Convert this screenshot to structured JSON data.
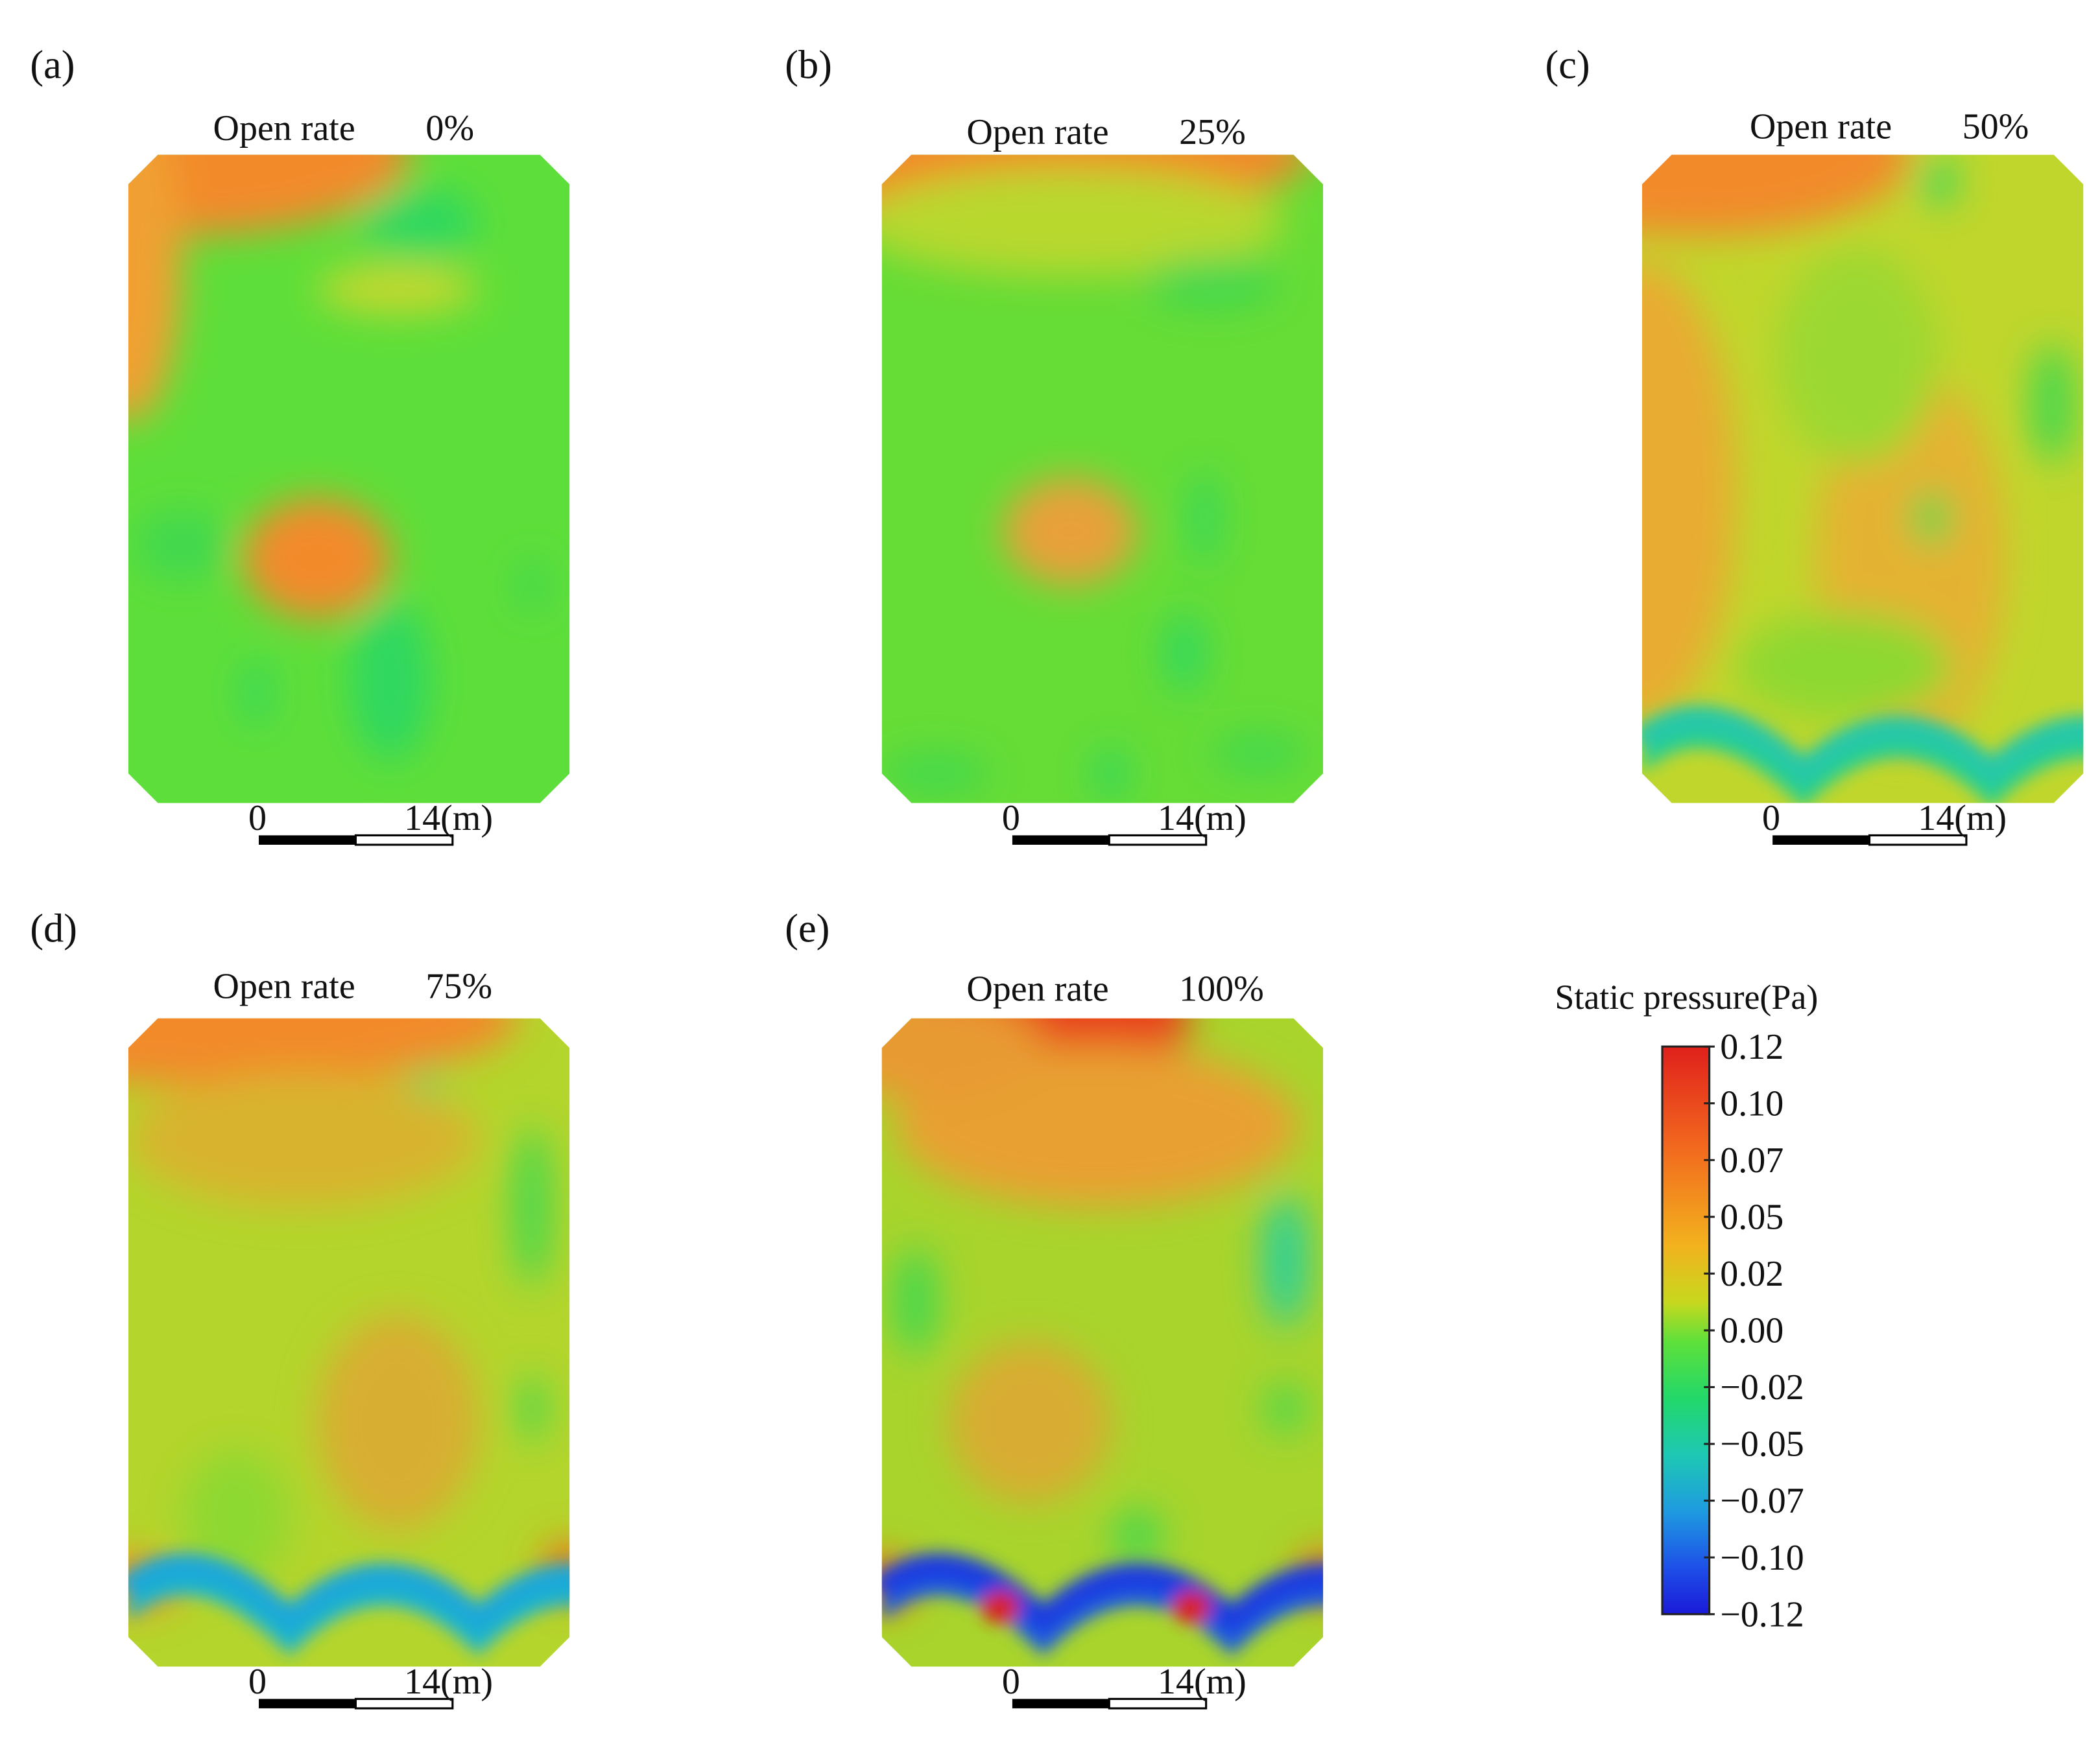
{
  "panels": [
    {
      "letter": "(a)",
      "title_label": "Open rate",
      "title_value": "0%",
      "scale_start": "0",
      "scale_end": "14(m)"
    },
    {
      "letter": "(b)",
      "title_label": "Open rate",
      "title_value": "25%",
      "scale_start": "0",
      "scale_end": "14(m)"
    },
    {
      "letter": "(c)",
      "title_label": "Open rate",
      "title_value": "50%",
      "scale_start": "0",
      "scale_end": "14(m)"
    },
    {
      "letter": "(d)",
      "title_label": "Open rate",
      "title_value": "75%",
      "scale_start": "0",
      "scale_end": "14(m)"
    },
    {
      "letter": "(e)",
      "title_label": "Open rate",
      "title_value": "100%",
      "scale_start": "0",
      "scale_end": "14(m)"
    }
  ],
  "colorbar": {
    "title": "Static pressure(Pa)",
    "ticks": [
      "0.12",
      "0.10",
      "0.07",
      "0.05",
      "0.02",
      "0.00",
      "−0.02",
      "−0.05",
      "−0.07",
      "−0.10",
      "−0.12"
    ]
  }
}
